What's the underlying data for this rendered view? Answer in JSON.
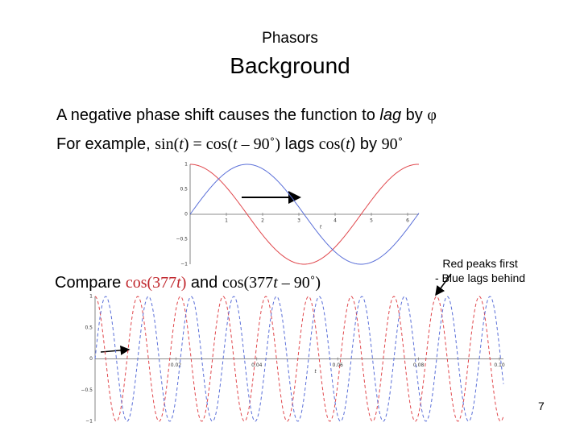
{
  "header": {
    "subtitle": "Phasors",
    "title": "Background"
  },
  "line1": [
    "A negative phase shift causes the function to ",
    "lag",
    " by ",
    "φ"
  ],
  "line2": [
    "For example, ",
    "sin(",
    "t",
    ") = cos(",
    "t",
    " – 90˚)",
    " lags ",
    "cos(",
    "t",
    ") by ",
    "90˚"
  ],
  "compare": [
    "Compare ",
    "cos(377",
    "t",
    ")",
    " and ",
    "cos(377",
    "t",
    " – 90˚)"
  ],
  "callout": [
    "Red peaks first",
    "- Blue lags behind"
  ],
  "plot_top": {
    "yticks": [
      "1",
      "0.5",
      "0",
      "−0.5",
      "−1"
    ],
    "xticks": [
      "1",
      "2",
      "3",
      "4",
      "5",
      "6"
    ],
    "xlabel": "t"
  },
  "plot_bottom": {
    "yticks": [
      "1",
      "0.5",
      "0",
      "−0.5",
      "−1"
    ],
    "xticks": [
      "0.02",
      "0.04",
      "0.06",
      "0.08",
      "0.10"
    ],
    "xlabel": "t"
  },
  "page_number": "7"
}
